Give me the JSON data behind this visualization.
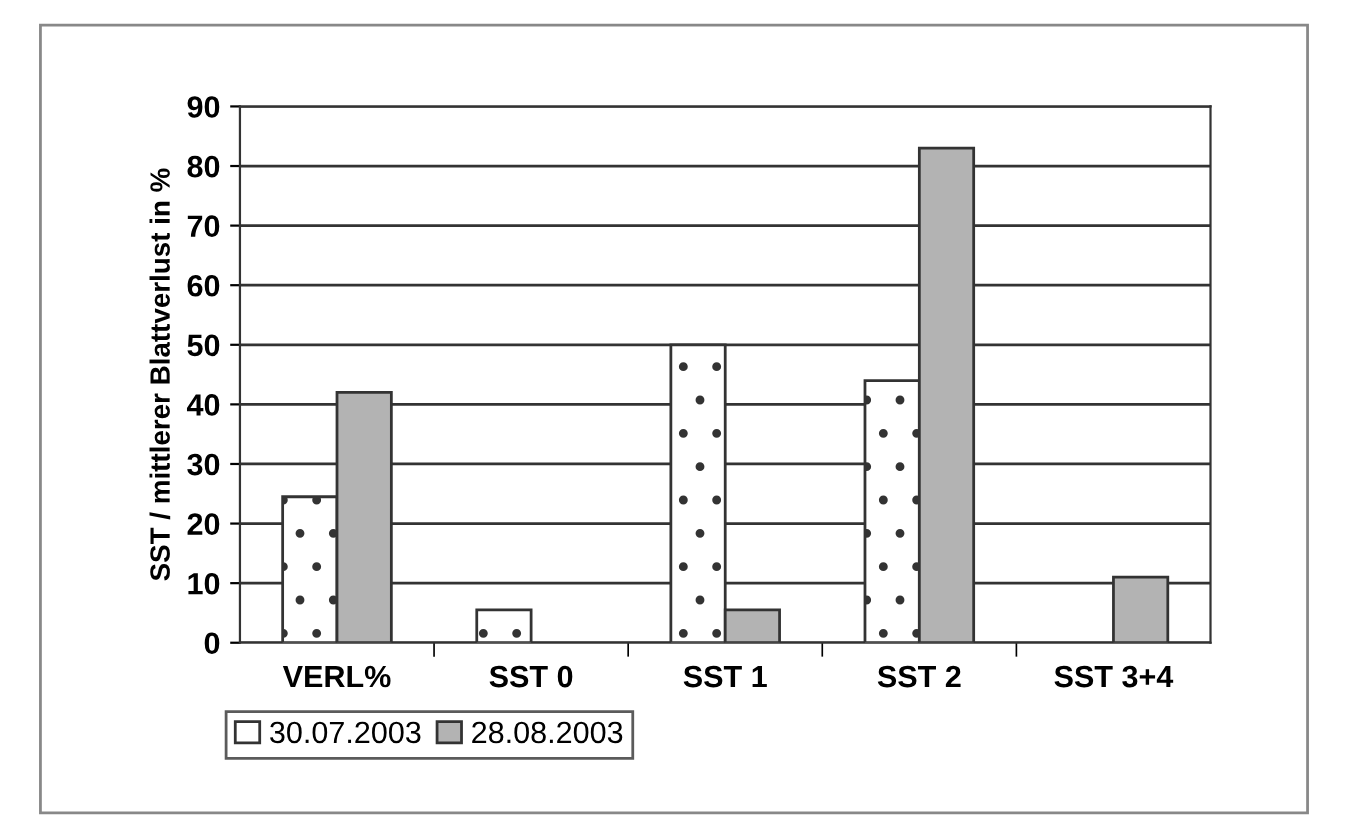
{
  "chart_data": {
    "type": "bar",
    "ylabel": "SST / mittlerer Blattverlust in %",
    "categories": [
      "VERL%",
      "SST 0",
      "SST 1",
      "SST 2",
      "SST 3+4"
    ],
    "series": [
      {
        "name": "30.07.2003",
        "color": "#ffffff",
        "values": [
          24.5,
          5.5,
          50,
          44,
          0
        ]
      },
      {
        "name": "28.08.2003",
        "color": "#b3b3b3",
        "values": [
          42,
          0,
          5.5,
          83,
          11
        ]
      }
    ],
    "ylim": [
      0,
      90
    ],
    "yticks": [
      0,
      10,
      20,
      30,
      40,
      50,
      60,
      70,
      80,
      90
    ],
    "grid": "y",
    "legend": "bottom left"
  }
}
